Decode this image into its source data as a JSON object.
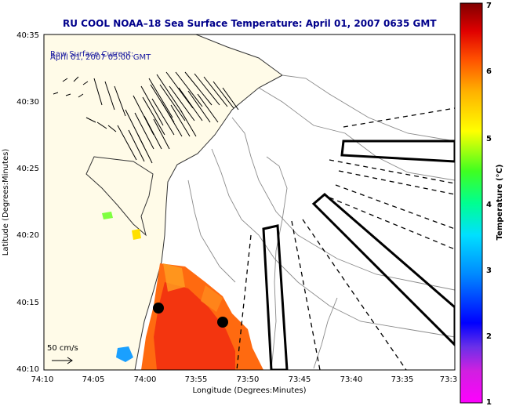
{
  "title": "RU COOL  NOAA–18  Sea Surface Temperature:  April 01, 2007 0635 GMT",
  "legend": {
    "line1": "Raw Surface Current:",
    "line2": "April 01, 2007 05:00 GMT"
  },
  "scale_label": "50 cm/s",
  "axes": {
    "xlabel": "Longitude (Degrees:Minutes)",
    "ylabel": "Latitude (Degrees:Minutes)",
    "x_ticks": [
      "74:10",
      "74:05",
      "74:00",
      "73:55",
      "73:50",
      "73:45",
      "73:40",
      "73:35",
      "73:3"
    ],
    "y_ticks": [
      "40:35",
      "40:30",
      "40:25",
      "40:20",
      "40:15",
      "40:10"
    ]
  },
  "colorbar": {
    "label": "Temperature (°C)",
    "ticks": [
      "7",
      "6",
      "5",
      "4",
      "3",
      "2",
      "1"
    ]
  },
  "colors": {
    "title": "#00008b",
    "legend_text": "#1a1aa0"
  }
}
